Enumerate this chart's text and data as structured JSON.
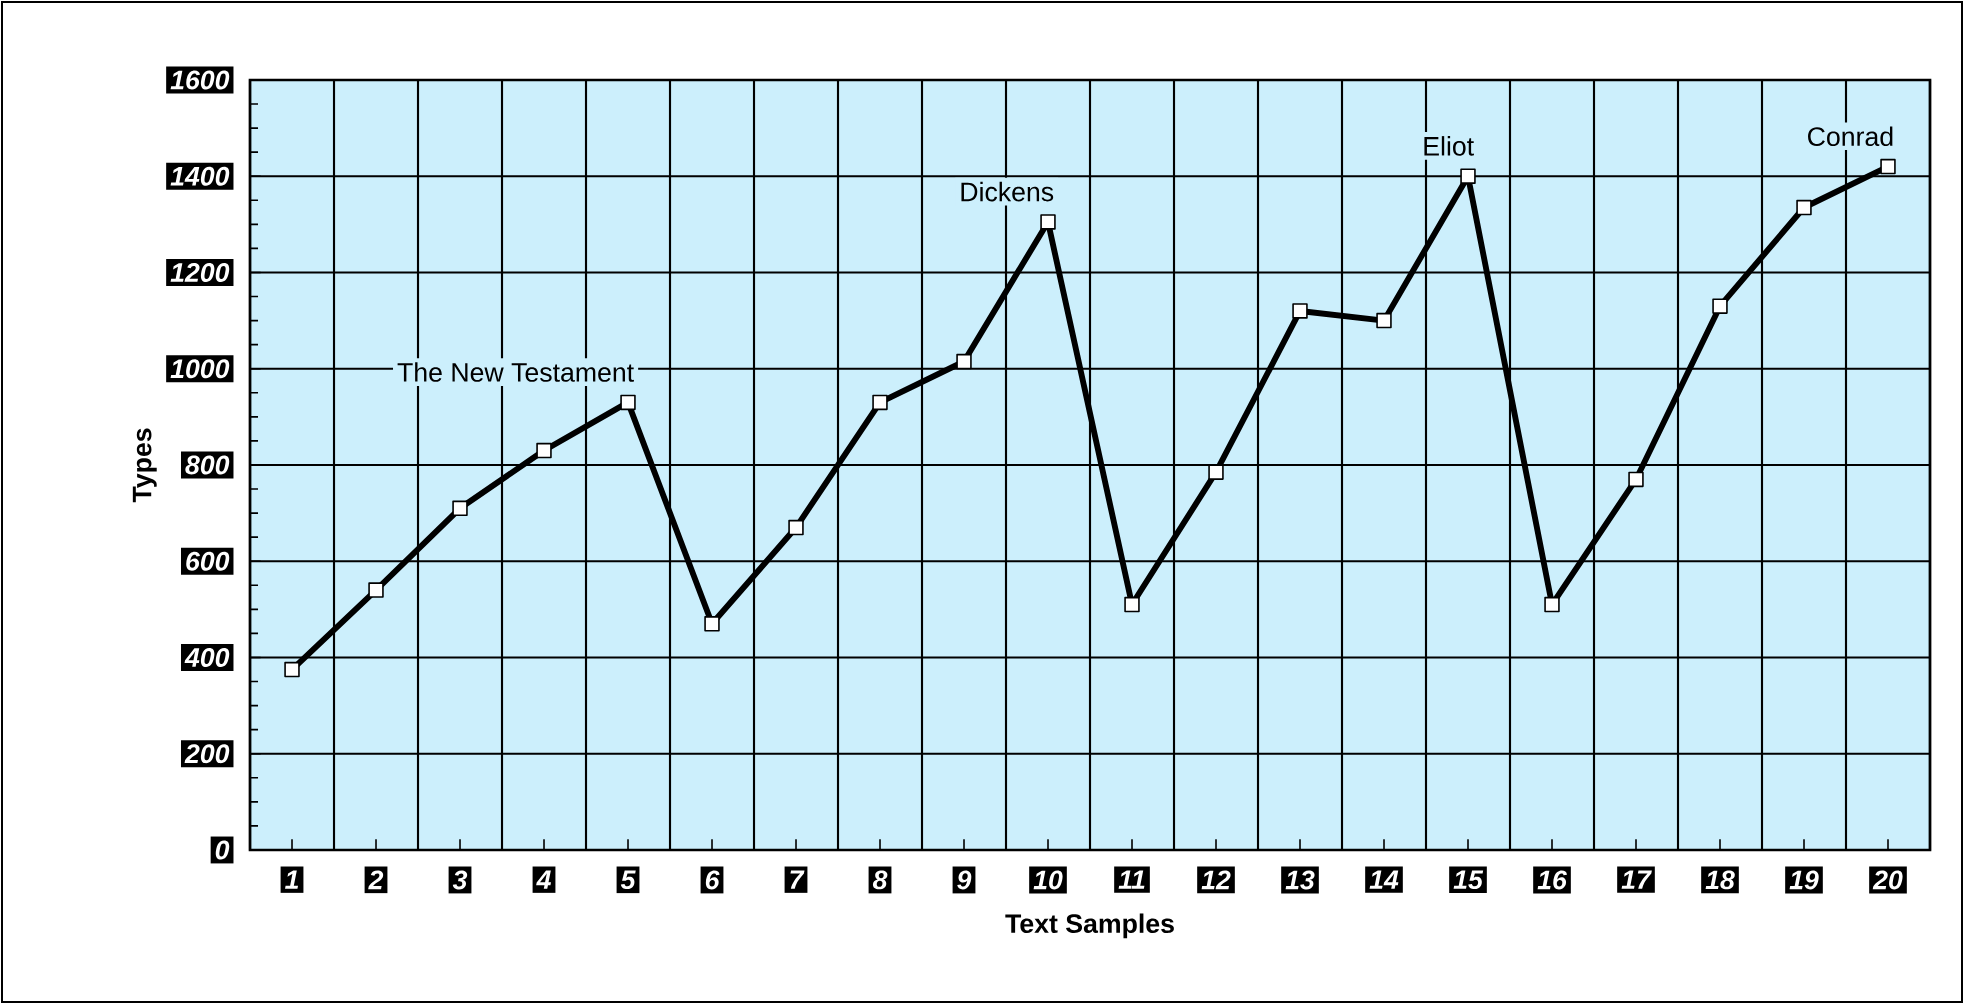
{
  "chart_data": {
    "type": "line",
    "xlabel": "Text Samples",
    "ylabel": "Types",
    "categories": [
      "1",
      "2",
      "3",
      "4",
      "5",
      "6",
      "7",
      "8",
      "9",
      "10",
      "11",
      "12",
      "13",
      "14",
      "15",
      "16",
      "17",
      "18",
      "19",
      "20"
    ],
    "series": [
      {
        "color": "#000000",
        "values": [
          375,
          540,
          710,
          830,
          930,
          470,
          670,
          930,
          1015,
          1305,
          510,
          785,
          1120,
          1100,
          1400,
          510,
          770,
          1130,
          1335,
          1420
        ]
      }
    ],
    "ylim": [
      0,
      1600
    ],
    "yticks": [
      0,
      200,
      400,
      600,
      800,
      1000,
      1200,
      1400,
      1600
    ],
    "grid": true,
    "marker": "square",
    "line_style": "solid",
    "annotations": [
      {
        "text": "The New Testament",
        "x": "5",
        "y": 930
      },
      {
        "text": "Dickens",
        "x": "10",
        "y": 1305
      },
      {
        "text": "Eliot",
        "x": "15",
        "y": 1400
      },
      {
        "text": "Conrad",
        "x": "20",
        "y": 1420
      }
    ]
  }
}
